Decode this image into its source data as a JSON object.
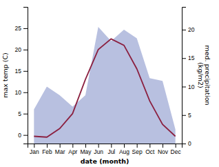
{
  "chart_data": {
    "type": "line",
    "categories": [
      "Jan",
      "Feb",
      "Mar",
      "Apr",
      "May",
      "Jun",
      "Jul",
      "Aug",
      "Sep",
      "Oct",
      "Nov",
      "Dec"
    ],
    "series": [
      {
        "type": "area",
        "axis": "y2",
        "color": "#b8c0e0",
        "values": [
          6.0,
          10.0,
          8.5,
          6.5,
          8.5,
          20.5,
          18.0,
          20.0,
          18.5,
          11.5,
          11.0,
          2.5
        ]
      },
      {
        "type": "line",
        "color": "#8B2040",
        "values": [
          -0.3,
          -0.5,
          1.5,
          5.0,
          13.0,
          20.0,
          22.5,
          21.0,
          15.5,
          8.0,
          2.5,
          -0.3
        ]
      }
    ],
    "x_label": "date (month)",
    "y_label": "max temp (C)",
    "y2_label": "med. precipitation\n(kg/m2)",
    "ylim": [
      -2,
      30
    ],
    "yticks": [
      0,
      5,
      10,
      15,
      20,
      25
    ],
    "y2lim": [
      0,
      24
    ],
    "y2ticks": [
      0,
      5,
      10,
      15,
      20
    ],
    "grid": false
  }
}
